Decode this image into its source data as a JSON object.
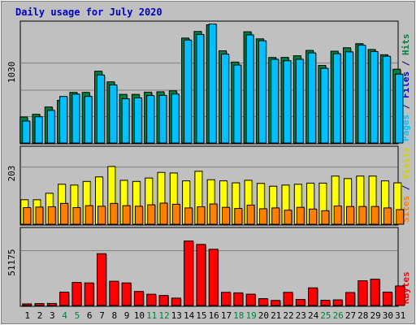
{
  "chart_data": {
    "type": "bar",
    "title": "Daily usage for July 2020",
    "days": [
      "1",
      "2",
      "3",
      "4",
      "5",
      "6",
      "7",
      "8",
      "9",
      "10",
      "11",
      "12",
      "13",
      "14",
      "15",
      "16",
      "17",
      "18",
      "19",
      "20",
      "21",
      "22",
      "23",
      "24",
      "25",
      "26",
      "27",
      "28",
      "29",
      "30",
      "31"
    ],
    "weekend_days": [
      "4",
      "5",
      "11",
      "12",
      "18",
      "19",
      "25",
      "26"
    ],
    "panels": [
      {
        "ytick_label": "1030",
        "ymax": 1030,
        "right_label": [
          {
            "text": "Hits",
            "color": "#008040"
          },
          {
            "text": " / ",
            "color": "#000080"
          },
          {
            "text": "Files",
            "color": "#0000C0"
          },
          {
            "text": " / ",
            "color": "#000080"
          },
          {
            "text": "Pages",
            "color": "#00C0FF"
          }
        ],
        "series": [
          {
            "name": "Hits",
            "color": "#008040",
            "values": [
              335,
              370,
              464,
              550,
              652,
              652,
              925,
              788,
              627,
              627,
              655,
              660,
              672,
              1352,
              1437,
              1523,
              1188,
              1043,
              1433,
              1342,
              1102,
              1103,
              1124,
              1193,
              1000,
              1183,
              1227,
              1280,
              1205,
              1137,
              951
            ]
          },
          {
            "name": "Files",
            "color": "#00C0FF",
            "values": [
              283,
              338,
              420,
              600,
              630,
              600,
              876,
              749,
              570,
              582,
              611,
              614,
              631,
              1327,
              1398,
              1533,
              1145,
              1004,
              1393,
              1317,
              1079,
              1060,
              1079,
              1161,
              962,
              1150,
              1174,
              1261,
              1178,
              1118,
              887
            ]
          }
        ]
      },
      {
        "ytick_label": "203",
        "ymax": 203,
        "right_label": [
          {
            "text": "Visits",
            "color": "#D0D000"
          },
          {
            "text": " / ",
            "color": "#000080"
          },
          {
            "text": "Sites",
            "color": "#FF8000"
          }
        ],
        "series": [
          {
            "name": "Visits",
            "color": "#FFFF00",
            "values": [
              87,
              87,
              110,
              142,
              139,
              152,
              168,
              205,
              156,
              152,
              164,
              184,
              182,
              154,
              188,
              158,
              154,
              147,
              156,
              145,
              135,
              139,
              142,
              146,
              146,
              171,
              162,
              171,
              171,
              154,
              147
            ]
          },
          {
            "name": "Sites",
            "color": "#FF8000",
            "values": [
              59,
              61,
              62,
              74,
              59,
              66,
              64,
              74,
              66,
              64,
              69,
              75,
              71,
              58,
              62,
              72,
              60,
              56,
              68,
              55,
              58,
              50,
              60,
              54,
              48,
              65,
              63,
              63,
              63,
              58,
              52
            ]
          }
        ]
      },
      {
        "ytick_label": "51175",
        "ymax": 51175,
        "right_label": [
          {
            "text": "KBytes",
            "color": "#FF0000"
          }
        ],
        "series": [
          {
            "name": "KBytes",
            "color": "#FF0000",
            "values": [
              1425,
              1800,
              1950,
              12450,
              21525,
              21075,
              48350,
              22650,
              21075,
              13100,
              10500,
              9375,
              6900,
              60150,
              57000,
              52475,
              12300,
              11825,
              10575,
              6375,
              4725,
              12300,
              5625,
              16500,
              4875,
              5250,
              12150,
              23100,
              24525,
              12450,
              18225
            ]
          }
        ]
      }
    ]
  }
}
